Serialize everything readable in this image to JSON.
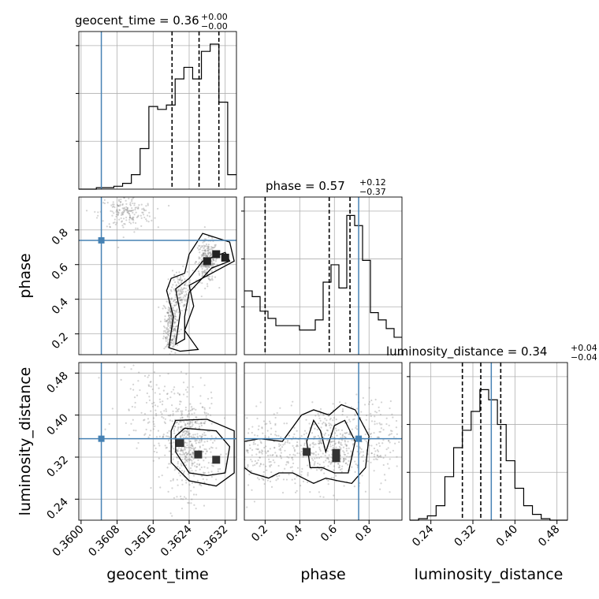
{
  "chart_data": {
    "type": "corner",
    "colors": {
      "truth": "#4682b4",
      "hist": "#000000",
      "grid": "#b0b0b0",
      "quantile": "#000000",
      "samples": "#808080"
    },
    "parameters": [
      {
        "name": "geocent_time",
        "label": "geocent_time",
        "range": [
          0.35995,
          0.36345
        ],
        "truth": 0.36045,
        "ticks": [
          0.36,
          0.3608,
          0.3616,
          0.3624,
          0.3632
        ],
        "tick_labels": [
          "0.3600",
          "0.3608",
          "0.3616",
          "0.3624",
          "0.3632"
        ],
        "title_main": "geocent_time = 0.36",
        "title_plus": "+0.00",
        "title_minus": "−0.00",
        "quantiles": [
          0.36202,
          0.36262,
          0.36306
        ],
        "hist_values": [
          0,
          0,
          0.01,
          0.01,
          0.02,
          0.04,
          0.1,
          0.28,
          0.57,
          0.55,
          0.58,
          0.76,
          0.84,
          0.76,
          0.95,
          1.0,
          0.6,
          0.1
        ]
      },
      {
        "name": "phase",
        "label": "phase",
        "range": [
          0.08,
          0.99
        ],
        "truth": 0.74,
        "ticks": [
          0.2,
          0.4,
          0.6,
          0.8
        ],
        "tick_labels": [
          "0.2",
          "0.4",
          "0.6",
          "0.8"
        ],
        "title_main": "phase = 0.57",
        "title_plus": "+0.12",
        "title_minus": "−0.37",
        "quantiles": [
          0.2,
          0.57,
          0.69
        ],
        "hist_values": [
          0.44,
          0.4,
          0.3,
          0.25,
          0.2,
          0.2,
          0.2,
          0.17,
          0.17,
          0.24,
          0.5,
          0.62,
          0.46,
          0.96,
          0.89,
          0.65,
          0.29,
          0.24,
          0.18,
          0.12
        ]
      },
      {
        "name": "luminosity_distance",
        "label": "luminosity_distance",
        "range": [
          0.2,
          0.5
        ],
        "truth": 0.355,
        "ticks": [
          0.24,
          0.32,
          0.4,
          0.48
        ],
        "tick_labels": [
          "0.24",
          "0.32",
          "0.40",
          "0.48"
        ],
        "title_main": "luminosity_distance = 0.34",
        "title_plus": "+0.04",
        "title_minus": "−0.04",
        "quantiles": [
          0.3,
          0.335,
          0.373
        ],
        "hist_values": [
          0,
          0.01,
          0.03,
          0.1,
          0.3,
          0.5,
          0.62,
          0.75,
          0.9,
          0.83,
          0.66,
          0.41,
          0.22,
          0.1,
          0.04,
          0.01,
          0,
          0
        ]
      }
    ],
    "scatter_panels": [
      "phase|geocent_time",
      "luminosity_distance|geocent_time",
      "luminosity_distance|phase"
    ]
  }
}
